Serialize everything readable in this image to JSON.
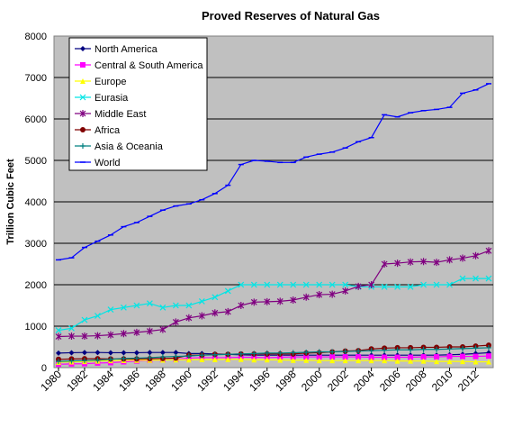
{
  "chart_data": {
    "type": "line",
    "title": "Proved Reserves of Natural Gas",
    "xlabel": "",
    "ylabel": "Trillion Cubic Feet",
    "ylim": [
      0,
      8000
    ],
    "yticks": [
      0,
      1000,
      2000,
      3000,
      4000,
      5000,
      6000,
      7000,
      8000
    ],
    "xlim": [
      1980,
      2013
    ],
    "xticks": [
      1980,
      1982,
      1984,
      1986,
      1988,
      1990,
      1992,
      1994,
      1996,
      1998,
      2000,
      2002,
      2004,
      2006,
      2008,
      2010,
      2012
    ],
    "grid": "horizontal",
    "legend_position": "top-left",
    "x": [
      1980,
      1981,
      1982,
      1983,
      1984,
      1985,
      1986,
      1987,
      1988,
      1989,
      1990,
      1991,
      1992,
      1993,
      1994,
      1995,
      1996,
      1997,
      1998,
      1999,
      2000,
      2001,
      2002,
      2003,
      2004,
      2005,
      2006,
      2007,
      2008,
      2009,
      2010,
      2011,
      2012,
      2013
    ],
    "series": [
      {
        "name": "North America",
        "color": "#000080",
        "marker": "diamond",
        "values": [
          350,
          360,
          365,
          365,
          360,
          360,
          360,
          365,
          365,
          365,
          340,
          340,
          330,
          320,
          310,
          300,
          300,
          300,
          300,
          300,
          300,
          300,
          300,
          300,
          300,
          300,
          300,
          300,
          300,
          300,
          310,
          320,
          340,
          360
        ]
      },
      {
        "name": "Central & South America",
        "color": "#ff00ff",
        "marker": "square",
        "values": [
          80,
          90,
          95,
          110,
          120,
          140,
          160,
          175,
          185,
          200,
          230,
          240,
          240,
          240,
          250,
          250,
          240,
          250,
          260,
          260,
          260,
          260,
          260,
          260,
          250,
          250,
          250,
          250,
          260,
          260,
          270,
          270,
          270,
          280
        ]
      },
      {
        "name": "Europe",
        "color": "#ffff00",
        "marker": "triangle",
        "values": [
          130,
          140,
          150,
          160,
          170,
          175,
          180,
          180,
          185,
          190,
          190,
          195,
          195,
          200,
          200,
          190,
          190,
          185,
          180,
          180,
          170,
          170,
          170,
          170,
          170,
          170,
          160,
          160,
          160,
          150,
          150,
          150,
          140,
          140
        ]
      },
      {
        "name": "Eurasia",
        "color": "#00e5e5",
        "marker": "x",
        "values": [
          900,
          950,
          1150,
          1250,
          1400,
          1450,
          1500,
          1550,
          1450,
          1500,
          1500,
          1600,
          1700,
          1850,
          2000,
          2000,
          2000,
          2000,
          2000,
          2000,
          2000,
          2000,
          2000,
          1950,
          1950,
          1950,
          1950,
          1950,
          2000,
          2000,
          2000,
          2150,
          2150,
          2150
        ]
      },
      {
        "name": "Middle East",
        "color": "#800080",
        "marker": "star",
        "values": [
          750,
          760,
          760,
          770,
          790,
          820,
          850,
          880,
          920,
          1100,
          1200,
          1250,
          1320,
          1350,
          1500,
          1580,
          1590,
          1600,
          1630,
          1700,
          1760,
          1770,
          1850,
          1960,
          2000,
          2500,
          2520,
          2550,
          2560,
          2540,
          2600,
          2640,
          2700,
          2820
        ]
      },
      {
        "name": "Africa",
        "color": "#800000",
        "marker": "circle",
        "values": [
          200,
          210,
          215,
          215,
          210,
          210,
          210,
          215,
          220,
          230,
          300,
          300,
          320,
          320,
          330,
          330,
          330,
          330,
          330,
          350,
          360,
          380,
          400,
          410,
          450,
          470,
          480,
          480,
          490,
          490,
          500,
          500,
          520,
          540
        ]
      },
      {
        "name": "Asia & Oceania",
        "color": "#008080",
        "marker": "plus",
        "values": [
          150,
          160,
          170,
          180,
          200,
          220,
          230,
          240,
          260,
          270,
          280,
          300,
          310,
          320,
          330,
          340,
          350,
          350,
          360,
          370,
          380,
          380,
          390,
          400,
          410,
          420,
          430,
          430,
          440,
          440,
          450,
          460,
          470,
          480
        ]
      },
      {
        "name": "World",
        "color": "#0000ff",
        "marker": "dash",
        "values": [
          2600,
          2650,
          2900,
          3050,
          3200,
          3400,
          3500,
          3650,
          3800,
          3900,
          3950,
          4050,
          4200,
          4400,
          4900,
          5000,
          4980,
          4950,
          4950,
          5080,
          5150,
          5200,
          5300,
          5450,
          5550,
          6100,
          6050,
          6150,
          6200,
          6230,
          6280,
          6620,
          6700,
          6850
        ]
      }
    ]
  }
}
